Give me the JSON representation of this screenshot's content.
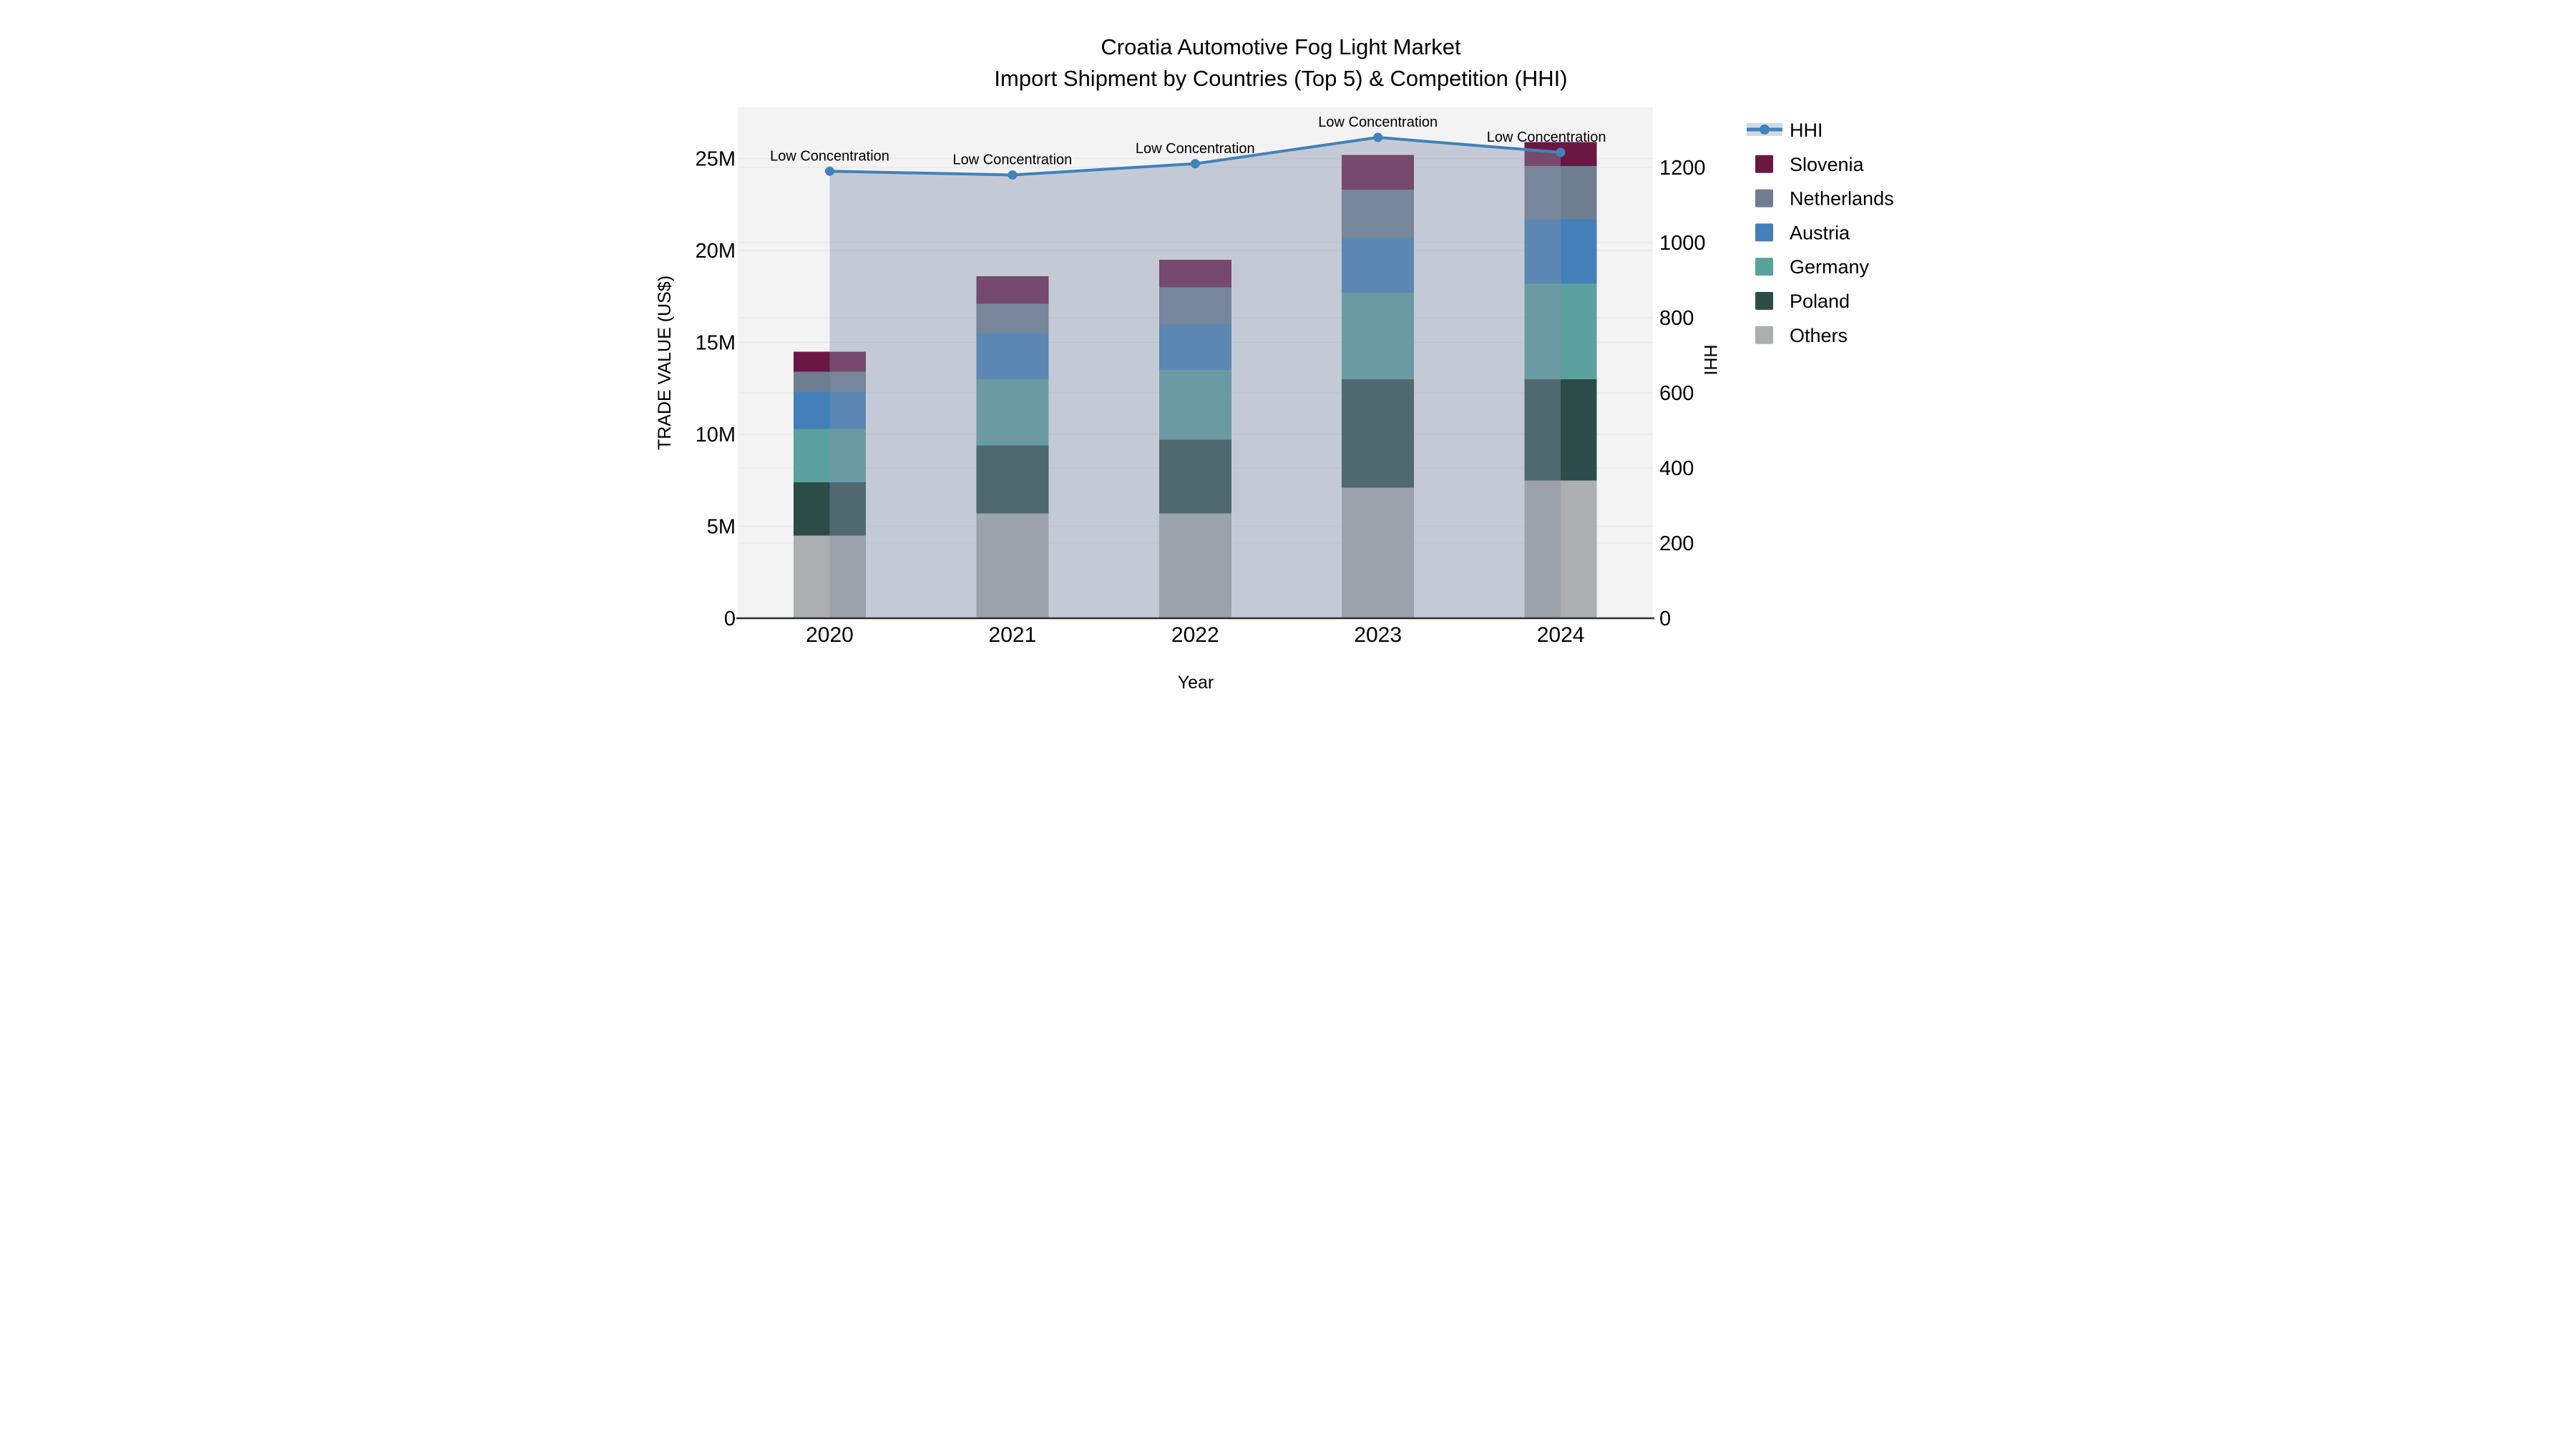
{
  "title": {
    "line1": "Croatia Automotive Fog Light Market",
    "line2": "Import Shipment by Countries (Top 5) & Competition (HHI)"
  },
  "axes": {
    "x": {
      "label": "Year",
      "ticks": [
        "2020",
        "2021",
        "2022",
        "2023",
        "2024"
      ]
    },
    "left": {
      "label": "TRADE VALUE (US$)",
      "ticks": [
        {
          "label": "0",
          "value": 0
        },
        {
          "label": "5M",
          "value": 5
        },
        {
          "label": "10M",
          "value": 10
        },
        {
          "label": "15M",
          "value": 15
        },
        {
          "label": "20M",
          "value": 20
        },
        {
          "label": "25M",
          "value": 25
        }
      ]
    },
    "right": {
      "label": "HHI",
      "ticks": [
        {
          "label": "0",
          "value": 0
        },
        {
          "label": "200",
          "value": 200
        },
        {
          "label": "400",
          "value": 400
        },
        {
          "label": "600",
          "value": 600
        },
        {
          "label": "800",
          "value": 800
        },
        {
          "label": "1000",
          "value": 1000
        },
        {
          "label": "1200",
          "value": 1200
        }
      ]
    }
  },
  "legend": {
    "items": [
      {
        "label": "HHI",
        "type": "line"
      },
      {
        "label": "Slovenia",
        "type": "swatch",
        "color": "#6b1743"
      },
      {
        "label": "Netherlands",
        "type": "swatch",
        "color": "#6e7e90"
      },
      {
        "label": "Austria",
        "type": "swatch",
        "color": "#4380ba"
      },
      {
        "label": "Germany",
        "type": "swatch",
        "color": "#5ba19e"
      },
      {
        "label": "Poland",
        "type": "swatch",
        "color": "#2c4c48"
      },
      {
        "label": "Others",
        "type": "swatch",
        "color": "#acaeaf"
      }
    ]
  },
  "colors": {
    "hhi_line": "#4182ba",
    "hhi_fill": "rgba(130,145,170,0.42)",
    "plot_bg": "#f3f3f4",
    "grid": "#e7e8ea",
    "axis_line": "#2f2f2f",
    "text": "#000000"
  },
  "chart_data": {
    "type": "bar",
    "stacked": true,
    "title": "Croatia Automotive Fog Light Market — Import Shipment by Countries (Top 5) & Competition (HHI)",
    "x": [
      "2020",
      "2021",
      "2022",
      "2023",
      "2024"
    ],
    "xlabel": "Year",
    "ylabel_left": "TRADE VALUE (US$)",
    "ylabel_right": "HHI",
    "bar_value_unit": "million US$, left axis",
    "stack_order_bottom_to_top": [
      "Others",
      "Poland",
      "Germany",
      "Austria",
      "Netherlands",
      "Slovenia"
    ],
    "series": [
      {
        "name": "Slovenia",
        "color": "#6b1743",
        "values_musd": [
          1.1,
          1.5,
          1.5,
          1.9,
          1.3
        ]
      },
      {
        "name": "Netherlands",
        "color": "#6e7e90",
        "values_musd": [
          1.1,
          1.6,
          2.0,
          2.6,
          2.9
        ]
      },
      {
        "name": "Austria",
        "color": "#4380ba",
        "values_musd": [
          2.0,
          2.5,
          2.5,
          3.0,
          3.5
        ]
      },
      {
        "name": "Germany",
        "color": "#5ba19e",
        "values_musd": [
          2.9,
          3.6,
          3.8,
          4.7,
          5.2
        ]
      },
      {
        "name": "Poland",
        "color": "#2c4c48",
        "values_musd": [
          2.9,
          3.7,
          4.0,
          5.9,
          5.5
        ]
      },
      {
        "name": "Others",
        "color": "#acaeaf",
        "values_musd": [
          4.5,
          5.7,
          5.7,
          7.1,
          7.5
        ]
      }
    ],
    "bar_totals_musd": [
      14.5,
      18.6,
      19.5,
      25.2,
      25.9
    ],
    "line_series": {
      "name": "HHI",
      "axis": "right",
      "values": [
        1190,
        1180,
        1210,
        1280,
        1240
      ],
      "point_annotations": [
        "Low Concentration",
        "Low Concentration",
        "Low Concentration",
        "Low Concentration",
        "Low Concentration"
      ]
    },
    "ylim_left_musd": [
      0,
      27.8
    ],
    "ylim_right_hhi": [
      0,
      1360
    ],
    "grid": true,
    "legend_position": "right"
  }
}
